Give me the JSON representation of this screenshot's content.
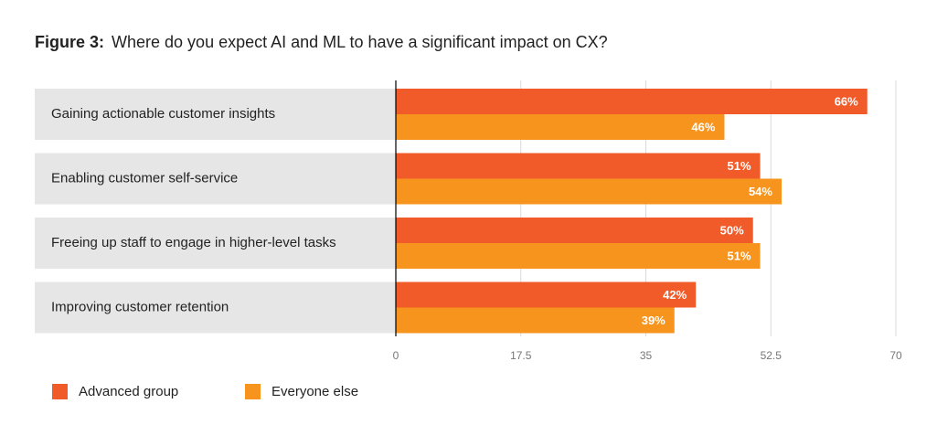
{
  "chart_data": {
    "type": "bar",
    "orientation": "horizontal",
    "figure_label": "Figure 3:",
    "title": "Where do you expect AI and ML to have a significant impact on CX?",
    "categories": [
      "Gaining actionable customer insights",
      "Enabling customer self-service",
      "Freeing up staff to engage in higher-level tasks",
      "Improving customer retention"
    ],
    "series": [
      {
        "name": "Advanced group",
        "color": "#f15a29",
        "values": [
          66,
          51,
          50,
          42
        ],
        "value_labels": [
          "66%",
          "51%",
          "50%",
          "42%"
        ]
      },
      {
        "name": "Everyone else",
        "color": "#f7941d",
        "values": [
          46,
          54,
          51,
          39
        ],
        "value_labels": [
          "46%",
          "54%",
          "51%",
          "39%"
        ]
      }
    ],
    "xlim": [
      0,
      70
    ],
    "xticks": [
      0,
      17.5,
      35,
      52.5,
      70
    ],
    "grid": true
  }
}
